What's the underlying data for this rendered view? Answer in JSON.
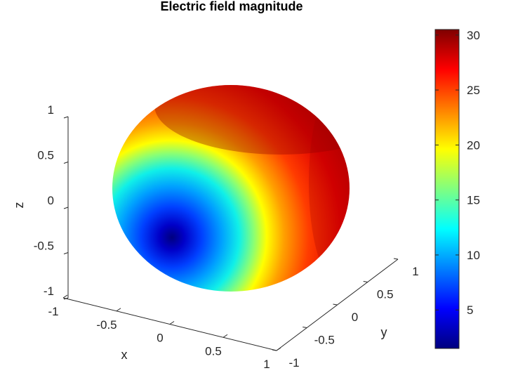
{
  "chart_data": {
    "type": "surface",
    "title": "Electric field magnitude",
    "xlabel": "x",
    "ylabel": "y",
    "zlabel": "z",
    "x_ticks": [
      "-1",
      "-0.5",
      "0",
      "0.5",
      "1"
    ],
    "y_ticks": [
      "-1",
      "-0.5",
      "0",
      "0.5",
      "1"
    ],
    "z_ticks": [
      "1",
      "0.5",
      "0",
      "-0.5",
      "-1"
    ],
    "xlim": [
      -1,
      1
    ],
    "ylim": [
      -1,
      1
    ],
    "zlim": [
      -1,
      1
    ],
    "surface": "unit sphere",
    "colorbar": {
      "colormap": "jet",
      "range": [
        1.5,
        30.5
      ],
      "ticks": [
        "30",
        "25",
        "20",
        "15",
        "10",
        "5"
      ]
    },
    "field": {
      "min_value": 1.5,
      "max_value": 30.5
    }
  }
}
